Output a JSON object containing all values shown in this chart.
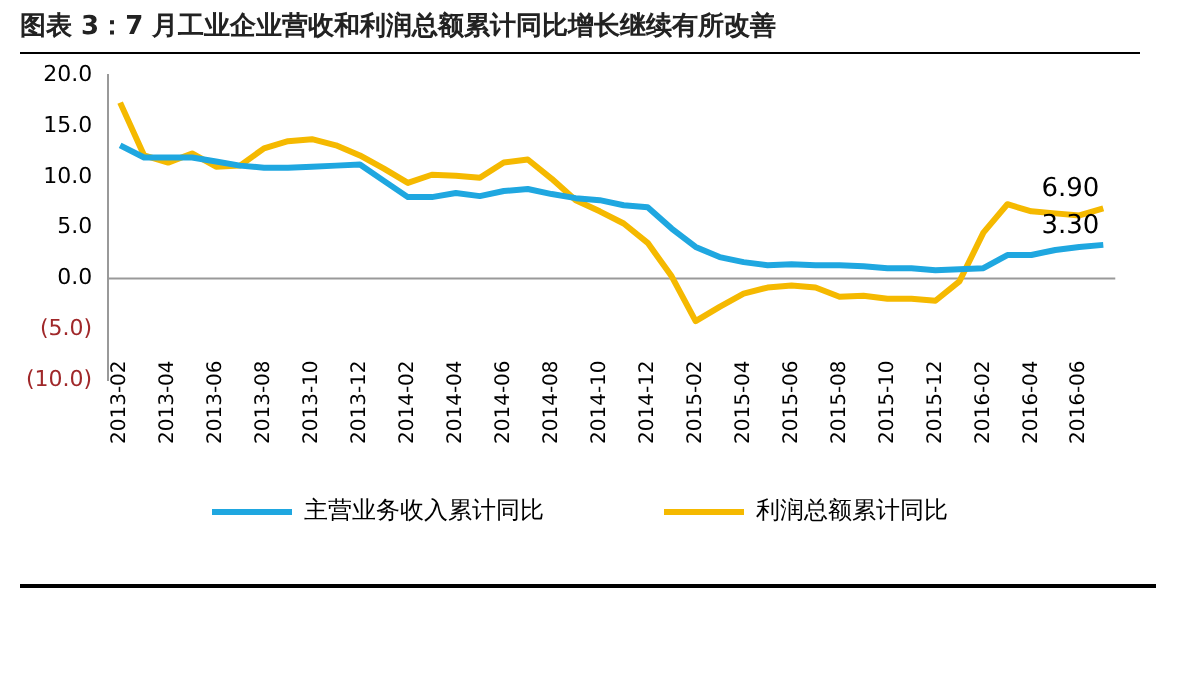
{
  "chart_data": {
    "type": "line",
    "title": "图表 3：7 月工业企业营收和利润总额累计同比增长继续有所改善",
    "categories": [
      "2013-02",
      null,
      "2013-04",
      null,
      "2013-06",
      null,
      "2013-08",
      null,
      "2013-10",
      null,
      "2013-12",
      null,
      "2014-02",
      null,
      "2014-04",
      null,
      "2014-06",
      null,
      "2014-08",
      null,
      "2014-10",
      null,
      "2014-12",
      null,
      "2015-02",
      null,
      "2015-04",
      null,
      "2015-06",
      null,
      "2015-08",
      null,
      "2015-10",
      null,
      "2015-12",
      null,
      "2016-02",
      null,
      "2016-04",
      null,
      "2016-06",
      null
    ],
    "series": [
      {
        "name": "主营业务收入累计同比",
        "color": "#1fa7e0",
        "values": [
          13.1,
          11.9,
          11.9,
          11.9,
          11.5,
          11.1,
          10.9,
          10.9,
          11.0,
          11.1,
          11.2,
          9.6,
          8.0,
          8.0,
          8.4,
          8.1,
          8.6,
          8.8,
          8.3,
          7.9,
          7.7,
          7.2,
          7.0,
          4.9,
          3.1,
          2.1,
          1.6,
          1.3,
          1.4,
          1.3,
          1.3,
          1.2,
          1.0,
          1.0,
          0.8,
          0.9,
          1.0,
          2.3,
          2.3,
          2.8,
          3.1,
          3.3
        ],
        "value_labels": [
          null,
          null,
          null,
          null,
          null,
          null,
          null,
          null,
          null,
          null,
          null,
          null,
          null,
          null,
          null,
          null,
          null,
          null,
          null,
          null,
          null,
          null,
          null,
          null,
          null,
          null,
          null,
          null,
          null,
          null,
          null,
          null,
          null,
          null,
          null,
          null,
          null,
          null,
          null,
          null,
          null,
          "3.30"
        ]
      },
      {
        "name": "利润总额累计同比",
        "color": "#f5b900",
        "values": [
          17.3,
          12.1,
          11.4,
          12.3,
          11.0,
          11.1,
          12.8,
          13.5,
          13.7,
          13.1,
          12.1,
          10.8,
          9.4,
          10.2,
          10.1,
          9.9,
          11.4,
          11.7,
          9.8,
          7.7,
          6.6,
          5.4,
          3.5,
          0.2,
          -4.2,
          -2.8,
          -1.5,
          -0.9,
          -0.7,
          -0.9,
          -1.8,
          -1.7,
          -2.0,
          -2.0,
          -2.2,
          -0.3,
          4.5,
          7.3,
          6.6,
          6.4,
          6.2,
          6.9
        ],
        "value_labels": [
          null,
          null,
          null,
          null,
          null,
          null,
          null,
          null,
          null,
          null,
          null,
          null,
          null,
          null,
          null,
          null,
          null,
          null,
          null,
          null,
          null,
          null,
          null,
          null,
          null,
          null,
          null,
          null,
          null,
          null,
          null,
          null,
          null,
          null,
          null,
          null,
          null,
          null,
          null,
          null,
          null,
          "6.90"
        ]
      }
    ],
    "ylim": [
      -10,
      20
    ],
    "yticks": [
      {
        "value": -10,
        "label": "(10.0)"
      },
      {
        "value": -5,
        "label": "(5.0)"
      },
      {
        "value": 0,
        "label": "0.0"
      },
      {
        "value": 5,
        "label": "5.0"
      },
      {
        "value": 10,
        "label": "10.0"
      },
      {
        "value": 15,
        "label": "15.0"
      },
      {
        "value": 20,
        "label": "20.0"
      }
    ],
    "ref_lines": [
      {
        "axis": "y",
        "value": 0,
        "color": "#999999"
      }
    ],
    "grid": false,
    "legend": "bottom",
    "marker": "none",
    "line_style": "solid"
  }
}
